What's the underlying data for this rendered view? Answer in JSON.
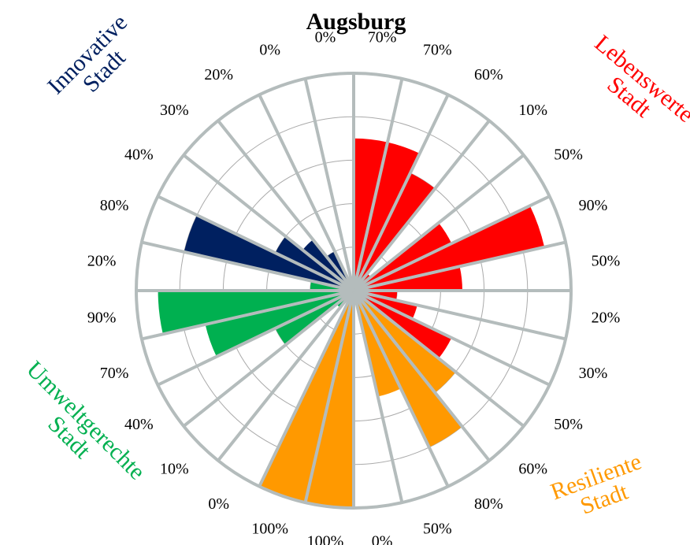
{
  "chart_data": {
    "type": "polar_bar",
    "title": "Augsburg",
    "ylim": [
      0,
      100
    ],
    "yticks": [
      20,
      40,
      60,
      80,
      100
    ],
    "grid": true,
    "series": [
      {
        "name": "Lebenswerte Stadt",
        "color": "#ff0000",
        "values": [
          70,
          70,
          60,
          10,
          50,
          90,
          50,
          20,
          30,
          50
        ],
        "value_labels": [
          "70%",
          "70%",
          "60%",
          "10%",
          "50%",
          "90%",
          "50%",
          "20%",
          "30%",
          "50%"
        ]
      },
      {
        "name": "Resiliente Stadt",
        "color": "#ff9900",
        "values": [
          60,
          80,
          50,
          0,
          100,
          100
        ],
        "value_labels": [
          "60%",
          "80%",
          "50%",
          "0%",
          "100%",
          "100%"
        ]
      },
      {
        "name": "Umweltgerechte Stadt",
        "color": "#00b050",
        "values": [
          0,
          10,
          40,
          70,
          90,
          20
        ],
        "value_labels": [
          "0%",
          "10%",
          "40%",
          "70%",
          "90%",
          "20%"
        ]
      },
      {
        "name": "Innovative Stadt",
        "color": "#002060",
        "values": [
          80,
          40,
          30,
          20,
          0,
          0
        ],
        "value_labels": [
          "80%",
          "40%",
          "30%",
          "20%",
          "0%",
          "0%"
        ]
      }
    ]
  }
}
